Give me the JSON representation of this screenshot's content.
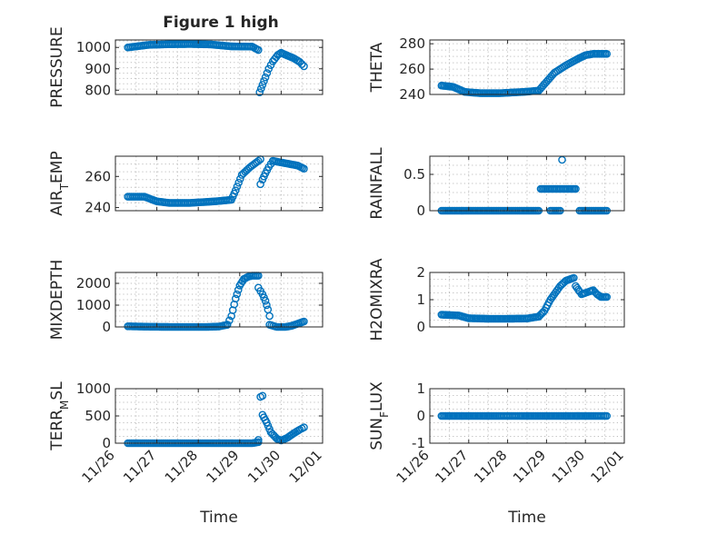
{
  "figure_title": "Figure 1 high",
  "marker_color": "#0072bd",
  "chart_data": [
    {
      "type": "scatter",
      "title": "Figure 1 high",
      "ylabel": "PRESSURE",
      "xlabel": "",
      "xlim": [
        0,
        5
      ],
      "ylim": [
        780,
        1035
      ],
      "yticks": [
        800,
        900,
        1000
      ],
      "xticklabels": [
        "11/26",
        "11/27",
        "11/28",
        "11/29",
        "11/30",
        "12/01"
      ],
      "grid": true,
      "segments": [
        {
          "x": [
            0.3,
            0.8,
            1.3,
            1.8,
            2.3,
            2.8,
            3.3,
            3.45
          ],
          "y": [
            1000,
            1012,
            1015,
            1016,
            1014,
            1005,
            1004,
            988
          ]
        },
        {
          "x": [
            3.48,
            3.55,
            3.62,
            3.7,
            3.8,
            3.92,
            4.0
          ],
          "y": [
            790,
            825,
            860,
            900,
            935,
            965,
            975
          ]
        },
        {
          "x": [
            4.0,
            4.15,
            4.3,
            4.45,
            4.55
          ],
          "y": [
            975,
            962,
            950,
            932,
            912
          ]
        }
      ]
    },
    {
      "type": "scatter",
      "ylabel": "THETA",
      "xlabel": "",
      "xlim": [
        0,
        5
      ],
      "ylim": [
        240,
        283
      ],
      "yticks": [
        240,
        260,
        280
      ],
      "xticklabels": [
        "11/26",
        "11/27",
        "11/28",
        "11/29",
        "11/30",
        "12/01"
      ],
      "grid": true,
      "segments": [
        {
          "x": [
            0.3,
            0.6,
            0.9,
            1.3,
            1.8,
            2.4,
            2.8,
            3.0,
            3.2,
            3.5,
            3.8,
            4.0,
            4.2,
            4.55
          ],
          "y": [
            247,
            246,
            242,
            241,
            241,
            242,
            243,
            250,
            257,
            263,
            268,
            271,
            272,
            272
          ]
        }
      ]
    },
    {
      "type": "scatter",
      "ylabel": "AIR_TEMP",
      "xlabel": "",
      "xlim": [
        0,
        5
      ],
      "ylim": [
        238,
        273
      ],
      "yticks": [
        240,
        260
      ],
      "xticklabels": [
        "11/26",
        "11/27",
        "11/28",
        "11/29",
        "11/30",
        "12/01"
      ],
      "grid": true,
      "segments": [
        {
          "x": [
            0.3,
            0.7,
            1.0,
            1.3,
            1.8,
            2.4,
            2.8,
            2.9,
            3.05,
            3.25,
            3.45,
            3.5
          ],
          "y": [
            247,
            247,
            244,
            243,
            243,
            244,
            245,
            251,
            261,
            266,
            270,
            271
          ]
        },
        {
          "x": [
            3.5,
            3.55,
            3.62,
            3.7,
            3.8
          ],
          "y": [
            255,
            258,
            262,
            266,
            270
          ]
        },
        {
          "x": [
            3.8,
            4.0,
            4.2,
            4.4,
            4.55
          ],
          "y": [
            270,
            269,
            268,
            267,
            265
          ]
        }
      ]
    },
    {
      "type": "scatter",
      "ylabel": "RAINFALL",
      "xlabel": "",
      "xlim": [
        0,
        5
      ],
      "ylim": [
        0,
        0.75
      ],
      "yticks": [
        0,
        0.5
      ],
      "xticklabels": [
        "11/26",
        "11/27",
        "11/28",
        "11/29",
        "11/30",
        "12/01"
      ],
      "grid": true,
      "segments": [
        {
          "x": [
            0.3,
            0.8,
            1.3,
            1.8,
            2.3,
            2.8
          ],
          "y": [
            0,
            0,
            0,
            0,
            0,
            0
          ]
        },
        {
          "x": [
            2.85,
            3.0,
            3.2,
            3.4,
            3.6,
            3.75
          ],
          "y": [
            0.3,
            0.3,
            0.3,
            0.3,
            0.3,
            0.3
          ]
        },
        {
          "x": [
            3.1,
            3.35
          ],
          "y": [
            0,
            0
          ]
        },
        {
          "x": [
            3.4
          ],
          "y": [
            0.7
          ]
        },
        {
          "x": [
            3.85,
            4.1,
            4.3,
            4.55
          ],
          "y": [
            0,
            0,
            0,
            0
          ]
        }
      ]
    },
    {
      "type": "scatter",
      "ylabel": "MIXDEPTH",
      "xlabel": "",
      "xlim": [
        0,
        5
      ],
      "ylim": [
        0,
        2500
      ],
      "yticks": [
        0,
        1000,
        2000
      ],
      "xticklabels": [
        "11/26",
        "11/27",
        "11/28",
        "11/29",
        "11/30",
        "12/01"
      ],
      "grid": true,
      "segments": [
        {
          "x": [
            0.3,
            0.8,
            1.3,
            1.8,
            2.2,
            2.5,
            2.7
          ],
          "y": [
            30,
            10,
            0,
            0,
            0,
            20,
            100
          ]
        },
        {
          "x": [
            2.7,
            2.8,
            2.9,
            3.0,
            3.1,
            3.2,
            3.3,
            3.45
          ],
          "y": [
            100,
            500,
            1300,
            1900,
            2200,
            2300,
            2350,
            2350
          ]
        },
        {
          "x": [
            3.45,
            3.55,
            3.62,
            3.68,
            3.72
          ],
          "y": [
            1800,
            1500,
            1200,
            800,
            500
          ]
        },
        {
          "x": [
            3.72,
            3.9,
            4.1,
            4.25,
            4.4,
            4.55
          ],
          "y": [
            100,
            0,
            0,
            50,
            150,
            250
          ]
        }
      ]
    },
    {
      "type": "scatter",
      "ylabel": "H2OMIXRA",
      "xlabel": "",
      "xlim": [
        0,
        5
      ],
      "ylim": [
        0,
        2
      ],
      "yticks": [
        0,
        1,
        2
      ],
      "xticklabels": [
        "11/26",
        "11/27",
        "11/28",
        "11/29",
        "11/30",
        "12/01"
      ],
      "grid": true,
      "segments": [
        {
          "x": [
            0.3,
            0.6,
            0.75,
            1.0,
            1.5,
            2.0,
            2.5,
            2.8
          ],
          "y": [
            0.45,
            0.43,
            0.42,
            0.32,
            0.3,
            0.3,
            0.31,
            0.38
          ]
        },
        {
          "x": [
            2.8,
            2.95,
            3.1,
            3.2,
            3.35,
            3.5,
            3.7
          ],
          "y": [
            0.38,
            0.6,
            1.0,
            1.2,
            1.5,
            1.7,
            1.8
          ]
        },
        {
          "x": [
            3.75,
            3.85,
            3.9,
            4.0,
            4.1,
            4.2,
            4.3,
            4.4,
            4.55
          ],
          "y": [
            1.5,
            1.3,
            1.2,
            1.25,
            1.3,
            1.35,
            1.2,
            1.1,
            1.1
          ]
        }
      ]
    },
    {
      "type": "scatter",
      "ylabel": "TERR_MSL",
      "xlabel": "Time",
      "xlim": [
        0,
        5
      ],
      "ylim": [
        0,
        1000
      ],
      "yticks": [
        0,
        500,
        1000
      ],
      "xticklabels": [
        "11/26",
        "11/27",
        "11/28",
        "11/29",
        "11/30",
        "12/01"
      ],
      "grid": true,
      "segments": [
        {
          "x": [
            0.3,
            0.8,
            1.3,
            1.8,
            2.3,
            2.8,
            3.3,
            3.45
          ],
          "y": [
            0,
            0,
            0,
            0,
            0,
            0,
            0,
            20
          ]
        },
        {
          "x": [
            3.45,
            3.5,
            3.55
          ],
          "y": [
            60,
            850,
            870
          ]
        },
        {
          "x": [
            3.55,
            3.65,
            3.75,
            3.9,
            4.0,
            4.15,
            4.3,
            4.45,
            4.55
          ],
          "y": [
            520,
            380,
            200,
            80,
            50,
            100,
            180,
            250,
            290
          ]
        }
      ]
    },
    {
      "type": "scatter",
      "ylabel": "SUN_FLUX",
      "xlabel": "Time",
      "xlim": [
        0,
        5
      ],
      "ylim": [
        -1,
        1
      ],
      "yticks": [
        -1,
        0,
        1
      ],
      "xticklabels": [
        "11/26",
        "11/27",
        "11/28",
        "11/29",
        "11/30",
        "12/01"
      ],
      "grid": true,
      "segments": [
        {
          "x": [
            0.3,
            0.8,
            1.3,
            1.8,
            2.3,
            2.8,
            3.3,
            3.8,
            4.3,
            4.55
          ],
          "y": [
            0,
            0,
            0,
            0,
            0,
            0,
            0,
            0,
            0,
            0
          ]
        }
      ]
    }
  ]
}
